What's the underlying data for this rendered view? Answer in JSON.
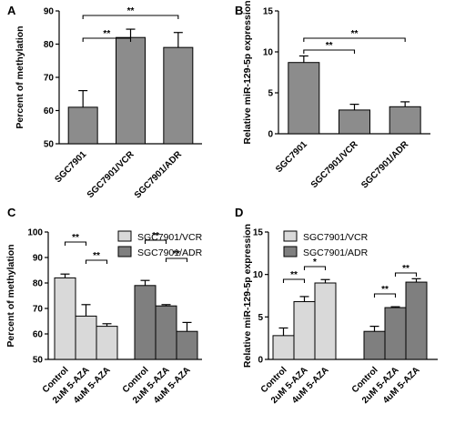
{
  "panels": {
    "a": "A",
    "b": "B",
    "c": "C",
    "d": "D"
  },
  "colors": {
    "vcr": "#d9d9d9",
    "adr": "#7f7f7f",
    "gray": "#8c8c8c",
    "axis": "#000000"
  },
  "chart_data": [
    {
      "type": "bar",
      "panel": "A",
      "categories": [
        "SGC7901",
        "SGC7901/VCR",
        "SGC7901/ADR"
      ],
      "values": [
        61,
        82,
        79
      ],
      "errors": [
        5,
        2.5,
        4.5
      ],
      "ylabel": "Percent of methylation",
      "ylim": [
        50,
        90
      ],
      "yticks": [
        50,
        60,
        70,
        80,
        90
      ],
      "significance": [
        {
          "from": 0,
          "to": 1,
          "label": "**"
        },
        {
          "from": 0,
          "to": 2,
          "label": "**"
        }
      ]
    },
    {
      "type": "bar",
      "panel": "B",
      "categories": [
        "SGC7901",
        "SGC7901/VCR",
        "SGC7901/ADR"
      ],
      "values": [
        8.7,
        2.9,
        3.3
      ],
      "errors": [
        0.8,
        0.7,
        0.6
      ],
      "ylabel": "Relative miR-129-5p expression",
      "ylim": [
        0,
        15
      ],
      "yticks": [
        0,
        5,
        10,
        15
      ],
      "significance": [
        {
          "from": 0,
          "to": 1,
          "label": "**"
        },
        {
          "from": 0,
          "to": 2,
          "label": "**"
        }
      ]
    },
    {
      "type": "bar",
      "panel": "C",
      "categories": [
        "Control",
        "2uM 5-AZA",
        "4uM 5-AZA"
      ],
      "series": [
        {
          "name": "SGC7901/VCR",
          "values": [
            82,
            67,
            63
          ],
          "errors": [
            1.5,
            4.5,
            1
          ]
        },
        {
          "name": "SGC7901/ADR",
          "values": [
            79,
            71,
            61
          ],
          "errors": [
            2,
            0.5,
            3.5
          ]
        }
      ],
      "ylabel": "Percent of methylation",
      "ylim": [
        50,
        100
      ],
      "yticks": [
        50,
        60,
        70,
        80,
        90,
        100
      ],
      "legend": "top-right",
      "significance": [
        {
          "series": 0,
          "from": 0,
          "to": 1,
          "label": "**"
        },
        {
          "series": 0,
          "from": 1,
          "to": 2,
          "label": "**"
        },
        {
          "series": 1,
          "from": 0,
          "to": 1,
          "label": "**"
        },
        {
          "series": 1,
          "from": 1,
          "to": 2,
          "label": "**"
        }
      ]
    },
    {
      "type": "bar",
      "panel": "D",
      "categories": [
        "Control",
        "2uM 5-AZA",
        "4uM 5-AZA"
      ],
      "series": [
        {
          "name": "SGC7901/VCR",
          "values": [
            2.8,
            6.8,
            9.0
          ],
          "errors": [
            0.9,
            0.6,
            0.4
          ]
        },
        {
          "name": "SGC7901/ADR",
          "values": [
            3.3,
            6.1,
            9.1
          ],
          "errors": [
            0.6,
            0.1,
            0.4
          ]
        }
      ],
      "ylabel": "Relative miR-129-5p expression",
      "ylim": [
        0,
        15
      ],
      "yticks": [
        0,
        5,
        10,
        15
      ],
      "legend": "top-right",
      "significance": [
        {
          "series": 0,
          "from": 0,
          "to": 1,
          "label": "**"
        },
        {
          "series": 0,
          "from": 1,
          "to": 2,
          "label": "*"
        },
        {
          "series": 1,
          "from": 0,
          "to": 1,
          "label": "**"
        },
        {
          "series": 1,
          "from": 1,
          "to": 2,
          "label": "**"
        }
      ]
    }
  ]
}
